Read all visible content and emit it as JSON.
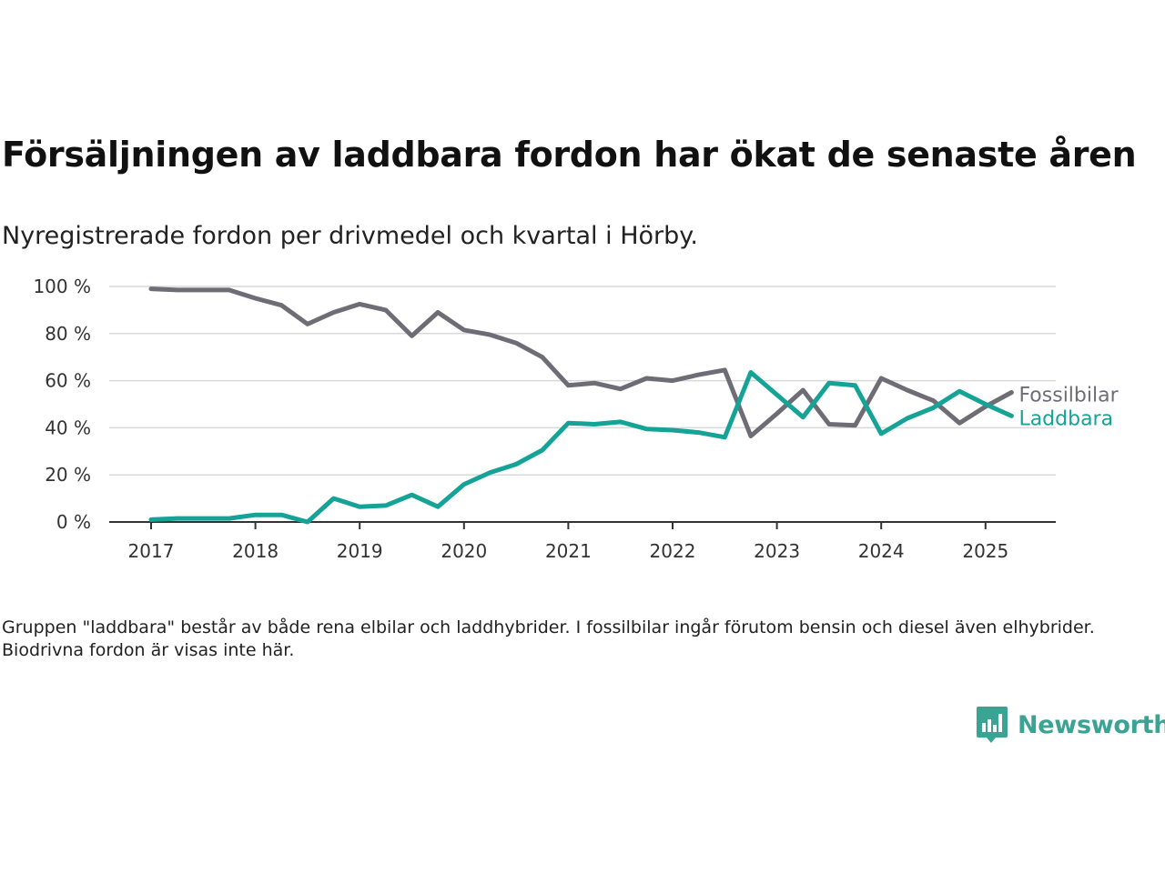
{
  "title": "Försäljningen av laddbara fordon har ökat de senaste åren",
  "subtitle": "Nyregistrerade fordon per drivmedel och kvartal i Hörby.",
  "note": "Gruppen \"laddbara\" består av både rena elbilar och laddhybrider. I fossilbilar ingår förutom bensin och diesel även elhybrider. Biodrivna fordon är visas inte här.",
  "brand": {
    "name": "Newsworthy",
    "icon": "newsworthy-logo-icon",
    "color": "#3aa394"
  },
  "chart_data": {
    "type": "line",
    "title": "Försäljningen av laddbara fordon har ökat de senaste åren",
    "subtitle": "Nyregistrerade fordon per drivmedel och kvartal i Hörby.",
    "xlabel": "",
    "ylabel": "",
    "x": [
      "2017-Q1",
      "2017-Q2",
      "2017-Q3",
      "2017-Q4",
      "2018-Q1",
      "2018-Q2",
      "2018-Q3",
      "2018-Q4",
      "2019-Q1",
      "2019-Q2",
      "2019-Q3",
      "2019-Q4",
      "2020-Q1",
      "2020-Q2",
      "2020-Q3",
      "2020-Q4",
      "2021-Q1",
      "2021-Q2",
      "2021-Q3",
      "2021-Q4",
      "2022-Q1",
      "2022-Q2",
      "2022-Q3",
      "2022-Q4",
      "2023-Q1",
      "2023-Q2",
      "2023-Q3",
      "2023-Q4",
      "2024-Q1",
      "2024-Q2",
      "2024-Q3",
      "2024-Q4",
      "2025-Q1",
      "2025-Q2"
    ],
    "xticks": [
      "2017",
      "2018",
      "2019",
      "2020",
      "2021",
      "2022",
      "2023",
      "2024",
      "2025"
    ],
    "yticks": [
      "0 %",
      "20 %",
      "40 %",
      "60 %",
      "80 %",
      "100 %"
    ],
    "ylim": [
      0,
      100
    ],
    "grid": true,
    "legend": "direct labels at line ends",
    "series": [
      {
        "name": "Fossilbilar",
        "color": "#6e6d75",
        "values": [
          99,
          98.5,
          98.5,
          98.5,
          95,
          92,
          84,
          89,
          92.5,
          90,
          79,
          89,
          81.5,
          79.5,
          76,
          70,
          58,
          59,
          56.5,
          61,
          60,
          62.5,
          64.5,
          36.5,
          46,
          56,
          41.5,
          41,
          61,
          56,
          51.5,
          42,
          49,
          55
        ]
      },
      {
        "name": "Laddbara",
        "color": "#14a396",
        "values": [
          1,
          1.5,
          1.5,
          1.5,
          3,
          3,
          0,
          10,
          6.5,
          7,
          11.5,
          6.5,
          16,
          21,
          24.5,
          30.5,
          42,
          41.5,
          42.5,
          39.5,
          39,
          38,
          36,
          63.5,
          54,
          44.5,
          59,
          58,
          37.5,
          44,
          48.5,
          55.5,
          50,
          45
        ]
      }
    ]
  }
}
